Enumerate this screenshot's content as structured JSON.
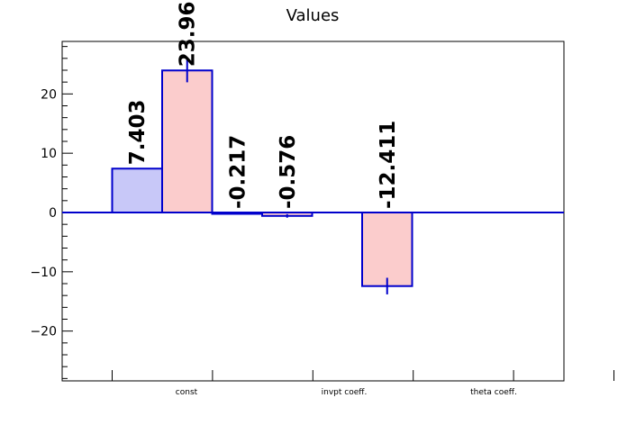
{
  "chart_data": {
    "type": "bar",
    "title": "Values",
    "categories": [
      "const",
      "invpt coeff.",
      "theta coeff."
    ],
    "ylim": [
      -28.5,
      28.5
    ],
    "yticks": [
      -20,
      -10,
      0,
      10,
      20
    ],
    "ytick_labels": [
      "−20",
      "−10",
      "0",
      "10",
      "20"
    ],
    "grid": false,
    "series": [
      {
        "fill": "#c8c8f8",
        "stroke": "#0000cc",
        "values": [
          7.403,
          -0.217,
          null
        ],
        "errors": [
          null,
          null,
          null
        ],
        "labels": [
          "7.403",
          "-0.217",
          ""
        ]
      },
      {
        "fill": "#fbcccc",
        "stroke": "#0000cc",
        "values": [
          23.961,
          -0.576,
          -12.411
        ],
        "errors": [
          2.0,
          0.3,
          1.4
        ],
        "labels": [
          "23.961",
          "-0.576",
          "-12.411"
        ]
      }
    ],
    "zero_line_color": "#0000cc"
  }
}
